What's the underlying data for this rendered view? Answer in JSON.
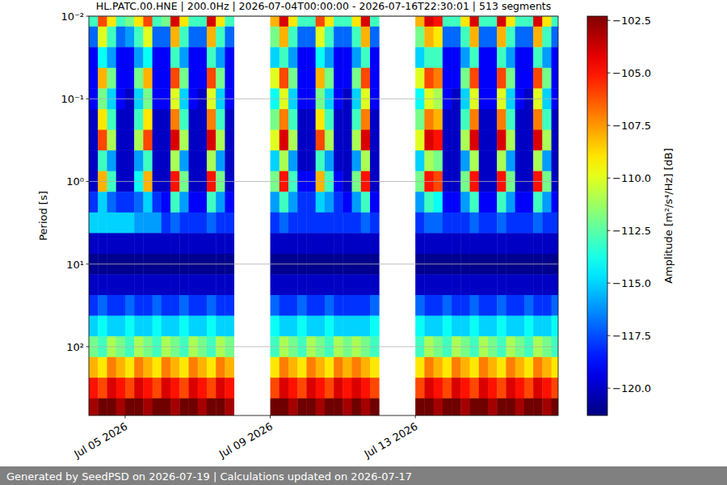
{
  "chart_data": {
    "type": "heatmap",
    "title": "HL.PATC.00.HNE | 200.0Hz | 2026-07-04T00:00:00 - 2026-07-16T22:30:01 | 513 segments",
    "ylabel": "Period [s]",
    "footer": "Generated by SeedPSD on 2026-07-19 | Calculations updated on 2026-07-17",
    "log": "y",
    "grid": "y",
    "xlim": [
      "2026-07-04T00:00:00",
      "2026-07-16T22:30:01"
    ],
    "xticks": [
      {
        "value": "2026-07-05T00:00:00",
        "label": "Jul 05 2026"
      },
      {
        "value": "2026-07-09T00:00:00",
        "label": "Jul 09 2026"
      },
      {
        "value": "2026-07-13T00:00:00",
        "label": "Jul 13 2026"
      }
    ],
    "ylim": [
      680,
      0.01
    ],
    "yticks": [
      {
        "value": 0.01,
        "label": "10⁻²"
      },
      {
        "value": 0.1,
        "label": "10⁻¹"
      },
      {
        "value": 1,
        "label": "10⁰"
      },
      {
        "value": 10,
        "label": "10¹"
      },
      {
        "value": 100,
        "label": "10²"
      }
    ],
    "colorbar": {
      "label": "Amplitude [m²/s⁴/Hz] [dB]",
      "range": [
        -121.3,
        -102.3
      ],
      "ticks": [
        {
          "value": -102.5,
          "label": "−102.5"
        },
        {
          "value": -105.0,
          "label": "−105.0"
        },
        {
          "value": -107.5,
          "label": "−107.5"
        },
        {
          "value": -110.0,
          "label": "−110.0"
        },
        {
          "value": -112.5,
          "label": "−112.5"
        },
        {
          "value": -115.0,
          "label": "−115.0"
        },
        {
          "value": -117.5,
          "label": "−117.5"
        },
        {
          "value": -120.0,
          "label": "−120.0"
        }
      ]
    },
    "x": [
      "2026-07-04T00:00:00",
      "2026-07-04T06:00:00",
      "2026-07-04T12:00:00",
      "2026-07-04T18:00:00",
      "2026-07-05T00:00:00",
      "2026-07-05T06:00:00",
      "2026-07-05T12:00:00",
      "2026-07-05T18:00:00",
      "2026-07-06T00:00:00",
      "2026-07-06T06:00:00",
      "2026-07-06T12:00:00",
      "2026-07-06T18:00:00",
      "2026-07-07T00:00:00",
      "2026-07-07T06:00:00",
      "2026-07-07T12:00:00",
      "2026-07-07T18:00:00",
      "2026-07-08T00:00:00",
      "2026-07-08T06:00:00",
      "2026-07-08T12:00:00",
      "2026-07-08T18:00:00",
      "2026-07-09T00:00:00",
      "2026-07-09T06:00:00",
      "2026-07-09T12:00:00",
      "2026-07-09T18:00:00",
      "2026-07-10T00:00:00",
      "2026-07-10T06:00:00",
      "2026-07-10T12:00:00",
      "2026-07-10T18:00:00",
      "2026-07-11T00:00:00",
      "2026-07-11T06:00:00",
      "2026-07-11T12:00:00",
      "2026-07-11T18:00:00",
      "2026-07-12T00:00:00",
      "2026-07-12T06:00:00",
      "2026-07-12T12:00:00",
      "2026-07-12T18:00:00",
      "2026-07-13T00:00:00",
      "2026-07-13T06:00:00",
      "2026-07-13T12:00:00",
      "2026-07-13T18:00:00",
      "2026-07-14T00:00:00",
      "2026-07-14T06:00:00",
      "2026-07-14T12:00:00",
      "2026-07-14T18:00:00",
      "2026-07-15T00:00:00",
      "2026-07-15T06:00:00",
      "2026-07-15T12:00:00",
      "2026-07-15T18:00:00",
      "2026-07-16T00:00:00",
      "2026-07-16T06:00:00",
      "2026-07-16T12:00:00",
      "2026-07-16T18:00:00"
    ],
    "y": [
      0.01,
      0.0178,
      0.0316,
      0.0562,
      0.1,
      0.178,
      0.316,
      0.562,
      1,
      1.78,
      3.16,
      5.62,
      10,
      17.8,
      31.6,
      56.2,
      100,
      178,
      316,
      562
    ],
    "cells": [
      [
        -113,
        -117,
        -119,
        -119,
        -119,
        -120,
        -120,
        -120,
        -120,
        -118,
        -115,
        -120,
        -121,
        -120,
        -118,
        -115,
        -112,
        -108,
        -105,
        -103
      ],
      [
        -106,
        -110,
        -114,
        -108,
        -112,
        -109,
        -106,
        -113,
        -108,
        -115,
        -115,
        -120,
        -121,
        -120,
        -117,
        -114,
        -113,
        -109,
        -106,
        -102
      ],
      [
        -109,
        -113,
        -116,
        -112,
        -115,
        -113,
        -111,
        -116,
        -113,
        -117,
        -115,
        -120,
        -121,
        -120,
        -118,
        -115,
        -111,
        -107,
        -104,
        -102
      ],
      [
        -113,
        -117,
        -119,
        -119,
        -119,
        -120,
        -120,
        -120,
        -120,
        -118,
        -115,
        -120,
        -121,
        -120,
        -118,
        -115,
        -112,
        -108,
        -105,
        -103
      ],
      [
        -112,
        -116,
        -119,
        -119,
        -120,
        -120,
        -120,
        -120,
        -120,
        -118,
        -115,
        -120,
        -121,
        -120,
        -117,
        -114,
        -113,
        -109,
        -106,
        -102
      ],
      [
        -109,
        -113,
        -116,
        -112,
        -115,
        -113,
        -111,
        -116,
        -114,
        -117,
        -116,
        -120,
        -121,
        -120,
        -118,
        -115,
        -111,
        -107,
        -104,
        -102
      ],
      [
        -106,
        -110,
        -114,
        -108,
        -112,
        -109,
        -106,
        -113,
        -108,
        -115,
        -116,
        -120,
        -121,
        -120,
        -118,
        -115,
        -112,
        -108,
        -105,
        -103
      ],
      [
        -113,
        -117,
        -119,
        -119,
        -119,
        -120,
        -120,
        -120,
        -120,
        -118,
        -116,
        -120,
        -121,
        -120,
        -117,
        -114,
        -113,
        -109,
        -106,
        -102
      ],
      [
        -112,
        -117,
        -119,
        -119,
        -119,
        -120,
        -120,
        -120,
        -120,
        -119,
        -118,
        -120,
        -121,
        -120,
        -118,
        -115,
        -111,
        -107,
        -104,
        -102
      ],
      [
        -104,
        -108,
        -113,
        -106,
        -110,
        -107,
        -104,
        -111,
        -105,
        -113,
        -117,
        -120,
        -121,
        -120,
        -118,
        -115,
        -112,
        -108,
        -105,
        -103
      ],
      [
        -109,
        -113,
        -116,
        -112,
        -115,
        -113,
        -111,
        -116,
        -112,
        -116,
        -118,
        -120,
        -121,
        -120,
        -117,
        -114,
        -113,
        -109,
        -106,
        -102
      ],
      [
        -113,
        -117,
        -119,
        -119,
        -119,
        -120,
        -120,
        -120,
        -120,
        -119,
        -118,
        -120,
        -121,
        -120,
        -118,
        -115,
        -111,
        -107,
        -104,
        -102
      ],
      [
        -113,
        -117,
        -119,
        -119,
        -120,
        -120,
        -120,
        -120,
        -120,
        -119,
        -118,
        -120,
        -121,
        -120,
        -118,
        -115,
        -112,
        -108,
        -105,
        -103
      ],
      [
        -104,
        -108,
        -113,
        -106,
        -110,
        -107,
        -104,
        -111,
        -105,
        -113,
        -117,
        -120,
        -121,
        -120,
        -117,
        -114,
        -113,
        -109,
        -106,
        -102
      ],
      [
        -109,
        -113,
        -116,
        -112,
        -115,
        -113,
        -111,
        -116,
        -112,
        -116,
        -118,
        -120,
        -121,
        -120,
        -118,
        -115,
        -111,
        -107,
        -104,
        -102
      ],
      [
        -113,
        -117,
        -119,
        -119,
        -119,
        -120,
        -120,
        -120,
        -120,
        -119,
        -118,
        -120,
        -121,
        -120,
        -118,
        -115,
        -112,
        -108,
        -105,
        -103
      ],
      null,
      null,
      null,
      null,
      [
        -108,
        -112,
        -115,
        -110,
        -114,
        -112,
        -110,
        -115,
        -112,
        -116,
        -118,
        -120,
        -121,
        -120,
        -117,
        -114,
        -113,
        -109,
        -106,
        -102
      ],
      [
        -104,
        -108,
        -113,
        -106,
        -110,
        -107,
        -104,
        -111,
        -105,
        -113,
        -117,
        -120,
        -121,
        -120,
        -118,
        -115,
        -111,
        -107,
        -104,
        -102
      ],
      [
        -109,
        -113,
        -116,
        -112,
        -115,
        -113,
        -111,
        -116,
        -113,
        -116,
        -118,
        -120,
        -121,
        -120,
        -118,
        -115,
        -112,
        -108,
        -105,
        -103
      ],
      [
        -113,
        -117,
        -119,
        -119,
        -119,
        -120,
        -120,
        -120,
        -119,
        -118,
        -118,
        -120,
        -121,
        -120,
        -117,
        -114,
        -113,
        -109,
        -106,
        -102
      ],
      [
        -113,
        -117,
        -119,
        -119,
        -119,
        -120,
        -120,
        -120,
        -119,
        -118,
        -118,
        -120,
        -121,
        -120,
        -118,
        -115,
        -111,
        -107,
        -104,
        -102
      ],
      [
        -106,
        -110,
        -114,
        -108,
        -112,
        -109,
        -106,
        -113,
        -108,
        -115,
        -118,
        -120,
        -121,
        -120,
        -118,
        -115,
        -112,
        -108,
        -105,
        -103
      ],
      [
        -109,
        -113,
        -116,
        -112,
        -115,
        -113,
        -111,
        -116,
        -113,
        -116,
        -118,
        -120,
        -121,
        -120,
        -117,
        -114,
        -113,
        -109,
        -106,
        -102
      ],
      [
        -113,
        -117,
        -119,
        -119,
        -119,
        -120,
        -120,
        -120,
        -119,
        -118,
        -118,
        -120,
        -121,
        -120,
        -118,
        -115,
        -111,
        -107,
        -104,
        -102
      ],
      [
        -113,
        -117,
        -119,
        -119,
        -120,
        -120,
        -120,
        -120,
        -120,
        -119,
        -118,
        -120,
        -121,
        -120,
        -118,
        -115,
        -112,
        -108,
        -105,
        -103
      ],
      [
        -109,
        -113,
        -116,
        -112,
        -115,
        -113,
        -111,
        -116,
        -112,
        -116,
        -118,
        -120,
        -121,
        -120,
        -118,
        -115,
        -111,
        -107,
        -104,
        -102
      ],
      [
        -104,
        -108,
        -113,
        -106,
        -110,
        -107,
        -104,
        -111,
        -105,
        -113,
        -117,
        -120,
        -121,
        -120,
        -118,
        -115,
        -112,
        -108,
        -105,
        -103
      ],
      [
        -113,
        -117,
        -119,
        -119,
        -119,
        -120,
        -120,
        -120,
        -120,
        -119,
        -118,
        -120,
        -121,
        -120,
        -117,
        -114,
        -113,
        -109,
        -106,
        -102
      ],
      null,
      null,
      null,
      null,
      [
        -108,
        -112,
        -115,
        -110,
        -114,
        -112,
        -110,
        -115,
        -112,
        -116,
        -118,
        -120,
        -121,
        -120,
        -117,
        -114,
        -113,
        -109,
        -106,
        -102
      ],
      [
        -104,
        -108,
        -113,
        -106,
        -110,
        -107,
        -104,
        -111,
        -105,
        -113,
        -117,
        -120,
        -121,
        -120,
        -118,
        -115,
        -111,
        -107,
        -104,
        -102
      ],
      [
        -105,
        -109,
        -113,
        -107,
        -111,
        -108,
        -105,
        -112,
        -106,
        -114,
        -117,
        -120,
        -121,
        -120,
        -118,
        -115,
        -112,
        -108,
        -105,
        -103
      ],
      [
        -113,
        -117,
        -119,
        -119,
        -119,
        -120,
        -120,
        -120,
        -120,
        -119,
        -118,
        -120,
        -121,
        -120,
        -117,
        -114,
        -113,
        -109,
        -106,
        -102
      ],
      [
        -113,
        -117,
        -119,
        -119,
        -120,
        -120,
        -120,
        -120,
        -120,
        -119,
        -118,
        -120,
        -121,
        -120,
        -118,
        -115,
        -111,
        -107,
        -104,
        -102
      ],
      [
        -109,
        -113,
        -116,
        -112,
        -115,
        -113,
        -111,
        -116,
        -112,
        -116,
        -118,
        -120,
        -121,
        -120,
        -118,
        -115,
        -112,
        -108,
        -105,
        -103
      ],
      [
        -104,
        -108,
        -113,
        -106,
        -110,
        -107,
        -104,
        -111,
        -105,
        -113,
        -117,
        -120,
        -121,
        -120,
        -117,
        -114,
        -113,
        -109,
        -106,
        -102
      ],
      [
        -113,
        -117,
        -119,
        -119,
        -119,
        -120,
        -120,
        -120,
        -120,
        -119,
        -118,
        -120,
        -121,
        -120,
        -118,
        -115,
        -111,
        -107,
        -104,
        -102
      ],
      [
        -113,
        -117,
        -119,
        -119,
        -119,
        -120,
        -120,
        -120,
        -120,
        -119,
        -118,
        -120,
        -121,
        -120,
        -118,
        -115,
        -112,
        -108,
        -105,
        -103
      ],
      [
        -104,
        -108,
        -113,
        -106,
        -110,
        -107,
        -104,
        -111,
        -105,
        -113,
        -117,
        -120,
        -121,
        -120,
        -117,
        -114,
        -113,
        -109,
        -106,
        -102
      ],
      [
        -109,
        -113,
        -116,
        -112,
        -115,
        -113,
        -111,
        -116,
        -112,
        -116,
        -118,
        -120,
        -121,
        -120,
        -118,
        -115,
        -111,
        -107,
        -104,
        -102
      ],
      [
        -113,
        -117,
        -119,
        -119,
        -119,
        -120,
        -120,
        -120,
        -120,
        -119,
        -118,
        -120,
        -121,
        -120,
        -118,
        -115,
        -112,
        -108,
        -105,
        -103
      ],
      [
        -113,
        -117,
        -119,
        -119,
        -120,
        -120,
        -120,
        -120,
        -120,
        -119,
        -118,
        -120,
        -121,
        -120,
        -117,
        -114,
        -113,
        -109,
        -106,
        -102
      ],
      [
        -104,
        -108,
        -113,
        -106,
        -110,
        -107,
        -104,
        -111,
        -105,
        -113,
        -117,
        -120,
        -121,
        -120,
        -118,
        -115,
        -111,
        -107,
        -104,
        -102
      ],
      [
        -109,
        -113,
        -116,
        -112,
        -115,
        -113,
        -111,
        -116,
        -112,
        -116,
        -118,
        -120,
        -121,
        -120,
        -118,
        -115,
        -112,
        -108,
        -105,
        -103
      ],
      [
        -113,
        -117,
        -119,
        -119,
        -119,
        -120,
        -120,
        -120,
        -120,
        -119,
        -118,
        -120,
        -121,
        -120,
        -117,
        -114,
        -113,
        -109,
        -106,
        -102
      ]
    ]
  }
}
